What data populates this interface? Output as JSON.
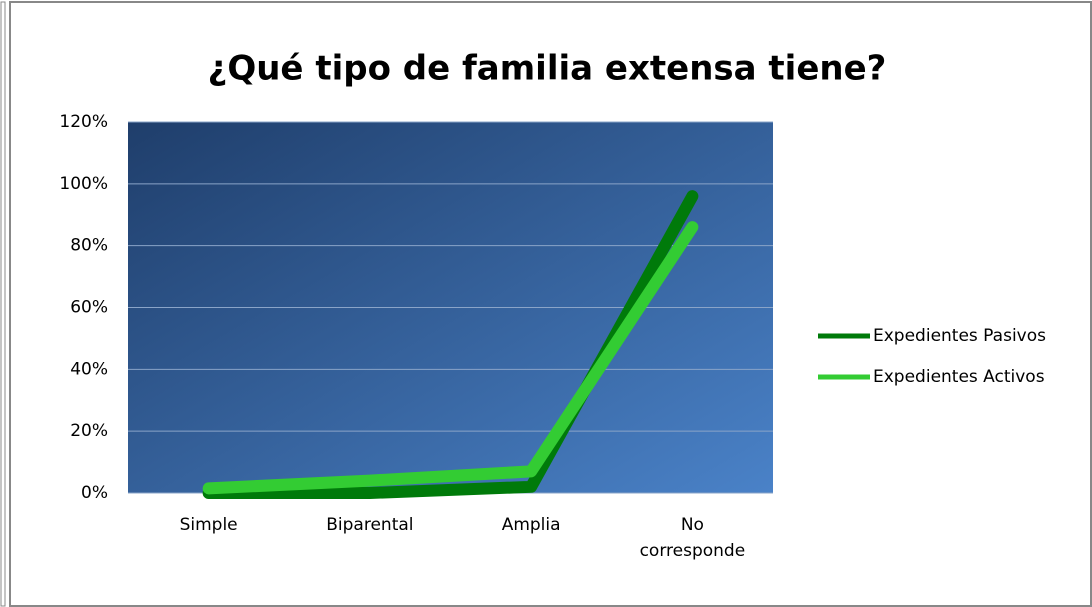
{
  "chart_data": {
    "type": "line",
    "title": "¿Qué tipo de familia extensa tiene?",
    "categories": [
      "Simple",
      "Biparental",
      "Amplia",
      "No corresponde"
    ],
    "series": [
      {
        "name": "Expedientes Pasivos",
        "color": "#007a0a",
        "values": [
          0,
          0,
          2,
          96
        ]
      },
      {
        "name": "Expedientes Activos",
        "color": "#33cc33",
        "values": [
          1.5,
          4,
          7,
          86
        ]
      }
    ],
    "ylim": [
      0,
      120
    ],
    "yticks": [
      {
        "value": 0,
        "label": "0%"
      },
      {
        "value": 20,
        "label": "20%"
      },
      {
        "value": 40,
        "label": "40%"
      },
      {
        "value": 60,
        "label": "60%"
      },
      {
        "value": 80,
        "label": "80%"
      },
      {
        "value": 100,
        "label": "100%"
      },
      {
        "value": 120,
        "label": "120%"
      }
    ],
    "grid": true,
    "legend": "right"
  }
}
